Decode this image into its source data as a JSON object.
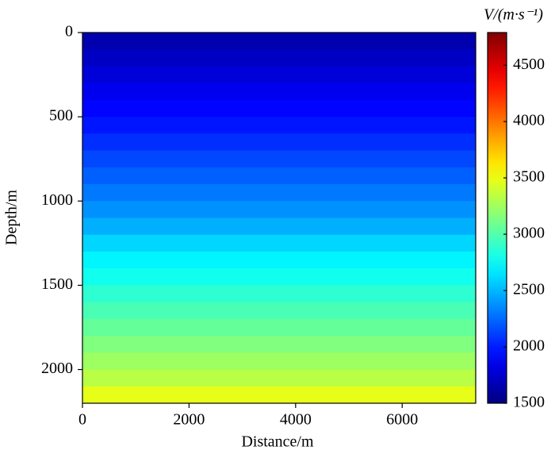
{
  "chart_data": {
    "type": "heatmap",
    "x_label": "Distance/m",
    "y_label": "Depth/m",
    "colorbar_label": "V/(m·s⁻¹)",
    "xlim": [
      0,
      7380
    ],
    "xticks": [
      0,
      2000,
      4000,
      6000
    ],
    "ylim": [
      0,
      2200
    ],
    "yticks": [
      0,
      500,
      1000,
      1500,
      2000
    ],
    "y_inverted": true,
    "depth_bins": [
      0,
      100,
      200,
      300,
      400,
      500,
      600,
      700,
      800,
      900,
      1000,
      1100,
      1200,
      1300,
      1400,
      1500,
      1600,
      1700,
      1800,
      1900,
      2000,
      2100,
      2200
    ],
    "values": [
      1650,
      1720,
      1790,
      1860,
      1920,
      1980,
      2060,
      2140,
      2220,
      2300,
      2380,
      2480,
      2600,
      2700,
      2790,
      2880,
      2970,
      3060,
      3150,
      3240,
      3330,
      3480
    ],
    "colormap": "jet",
    "clim": [
      1500,
      4790
    ],
    "cticks": [
      1500,
      2000,
      2500,
      3000,
      3500,
      4000,
      4500
    ]
  }
}
